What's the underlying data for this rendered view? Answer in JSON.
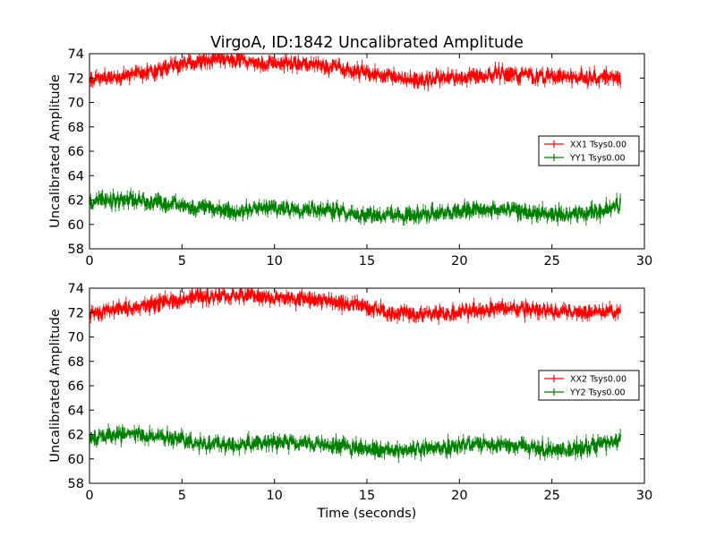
{
  "figure": {
    "title": "VirgoA, ID:1842 Uncalibrated Amplitude",
    "xlabel": "Time (seconds)"
  },
  "chart_data": [
    {
      "type": "line",
      "title": "VirgoA, ID:1842 Uncalibrated Amplitude",
      "xlabel": "",
      "ylabel": "Uncalibrated Amplitude",
      "xlim": [
        0,
        30
      ],
      "ylim": [
        58,
        74
      ],
      "xticks": [
        0,
        5,
        10,
        15,
        20,
        25,
        30
      ],
      "yticks": [
        58,
        60,
        62,
        64,
        66,
        68,
        70,
        72,
        74
      ],
      "grid": false,
      "legend": "center-right",
      "x": [
        0,
        2,
        4,
        6,
        8,
        10,
        12,
        14,
        16,
        18,
        20,
        22,
        24,
        26,
        28,
        28.7
      ],
      "series": [
        {
          "name": "XX1 Tsys0.00",
          "color": "#ff0000",
          "marker": "+",
          "values": [
            71.9,
            72.3,
            72.8,
            73.4,
            73.5,
            73.2,
            73.1,
            72.7,
            72.1,
            71.8,
            72.0,
            72.4,
            72.2,
            72.1,
            72.1,
            72.0
          ]
        },
        {
          "name": "YY1 Tsys0.00",
          "color": "#008000",
          "marker": "+",
          "values": [
            61.8,
            62.0,
            61.8,
            61.3,
            61.1,
            61.4,
            61.3,
            61.0,
            60.7,
            60.8,
            61.1,
            61.2,
            60.9,
            60.7,
            61.3,
            61.6
          ]
        }
      ]
    },
    {
      "type": "line",
      "title": "",
      "xlabel": "Time (seconds)",
      "ylabel": "Uncalibrated Amplitude",
      "xlim": [
        0,
        30
      ],
      "ylim": [
        58,
        74
      ],
      "xticks": [
        0,
        5,
        10,
        15,
        20,
        25,
        30
      ],
      "yticks": [
        58,
        60,
        62,
        64,
        66,
        68,
        70,
        72,
        74
      ],
      "grid": false,
      "legend": "center-right",
      "x": [
        0,
        2,
        4,
        6,
        8,
        10,
        12,
        14,
        16,
        18,
        20,
        22,
        24,
        26,
        28,
        28.7
      ],
      "series": [
        {
          "name": "XX2 Tsys0.00",
          "color": "#ff0000",
          "marker": "+",
          "values": [
            71.9,
            72.3,
            72.8,
            73.4,
            73.5,
            73.2,
            73.1,
            72.7,
            72.1,
            71.8,
            72.0,
            72.4,
            72.2,
            72.1,
            72.1,
            72.0
          ]
        },
        {
          "name": "YY2 Tsys0.00",
          "color": "#008000",
          "marker": "+",
          "values": [
            61.8,
            62.0,
            61.8,
            61.3,
            61.1,
            61.4,
            61.3,
            61.0,
            60.7,
            60.8,
            61.1,
            61.2,
            60.9,
            60.7,
            61.3,
            61.6
          ]
        }
      ]
    }
  ]
}
